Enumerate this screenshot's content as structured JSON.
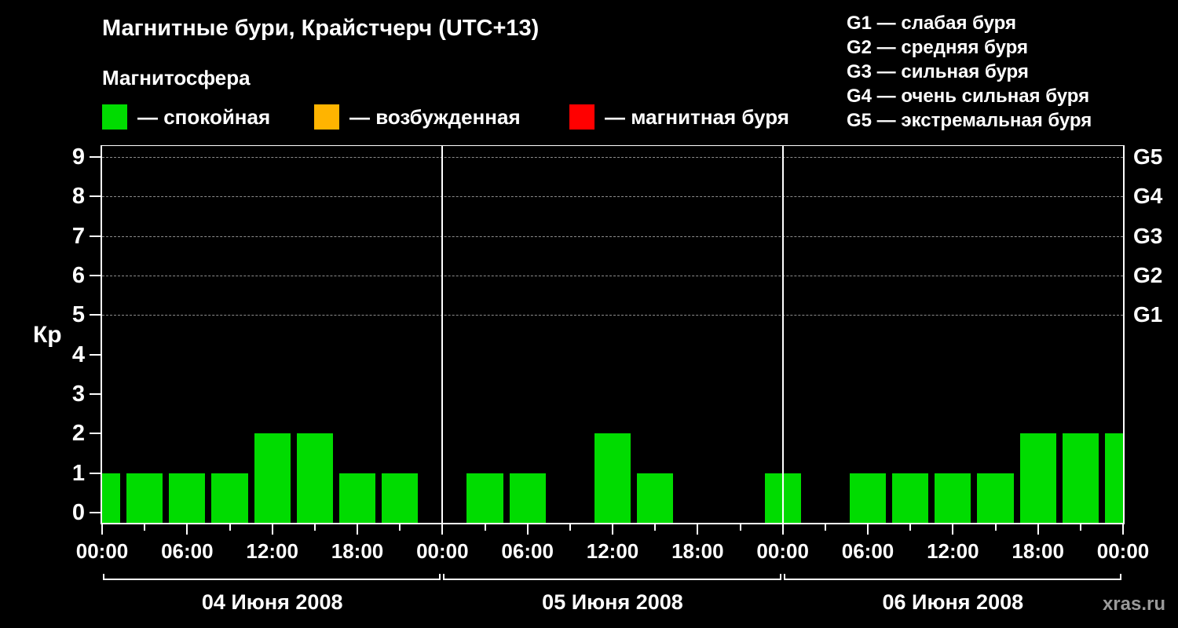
{
  "header": {
    "title": "Магнитные бури, Крайстчерч (UTC+13)",
    "subtitle": "Магнитосфера"
  },
  "legend": {
    "items": [
      {
        "key": "quiet",
        "color": "#00dc00",
        "label": "— спокойная"
      },
      {
        "key": "excited",
        "color": "#ffb400",
        "label": "— возбужденная"
      },
      {
        "key": "storm",
        "color": "#ff0000",
        "label": "— магнитная буря"
      }
    ]
  },
  "storm_levels": [
    "G1 — слабая буря",
    "G2 — средняя буря",
    "G3 — сильная буря",
    "G4 — очень сильная буря",
    "G5 — экстремальная буря"
  ],
  "watermark": "xras.ru",
  "chart_data": {
    "type": "bar",
    "title": "Магнитные бури, Крайстчерч (UTC+13)",
    "xlabel": "",
    "ylabel": "Кр",
    "ylim": [
      0,
      9
    ],
    "yticks": [
      0,
      1,
      2,
      3,
      4,
      5,
      6,
      7,
      8,
      9
    ],
    "grid_levels_dashed": [
      5,
      6,
      7,
      8,
      9
    ],
    "right_axis": [
      {
        "label": "G1",
        "value": 5
      },
      {
        "label": "G2",
        "value": 6
      },
      {
        "label": "G3",
        "value": 7
      },
      {
        "label": "G4",
        "value": 8
      },
      {
        "label": "G5",
        "value": 9
      }
    ],
    "bar_color": "#00dc00",
    "interval_hours": 3,
    "measurement_times": [
      "00:00",
      "03:00",
      "06:00",
      "09:00",
      "12:00",
      "15:00",
      "18:00",
      "21:00"
    ],
    "x_major_labels": [
      "00:00",
      "06:00",
      "12:00",
      "18:00"
    ],
    "days": [
      {
        "date": "04 Июня 2008",
        "kp_values": [
          1,
          1,
          1,
          1,
          2,
          2,
          1,
          1
        ]
      },
      {
        "date": "05 Июня 2008",
        "kp_values": [
          0,
          1,
          1,
          0,
          2,
          1,
          0,
          0
        ]
      },
      {
        "date": "06 Июня 2008",
        "kp_values": [
          1,
          0,
          1,
          1,
          1,
          1,
          2,
          2
        ]
      }
    ],
    "closing_value": 2,
    "legend_position": "top",
    "grid": "horizontal-dashed-storm-levels-only"
  }
}
